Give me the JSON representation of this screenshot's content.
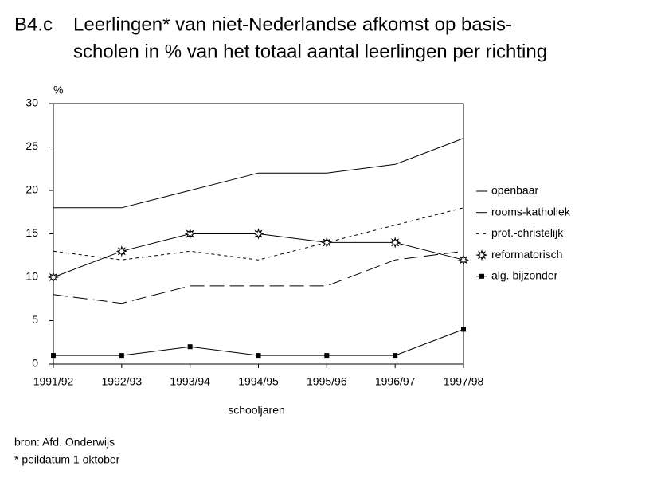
{
  "chart_data": {
    "type": "line",
    "figure_label": "B4.c",
    "title": [
      "Leerlingen* van niet-Nederlandse afkomst op basis-",
      "scholen in % van het totaal aantal leerlingen per richting"
    ],
    "y_label": "%",
    "x_label": "schooljaren",
    "categories": [
      "1991/92",
      "1992/93",
      "1993/94",
      "1994/95",
      "1995/96",
      "1996/97",
      "1997/98"
    ],
    "series": [
      {
        "name": "openbaar",
        "color": "#000000",
        "dash": "solid",
        "marker": "none",
        "values": [
          18,
          18,
          20,
          22,
          22,
          23,
          26
        ]
      },
      {
        "name": "rooms-katholiek",
        "color": "#000000",
        "dash": "long",
        "marker": "none",
        "values": [
          8,
          7,
          9,
          9,
          9,
          12,
          13
        ]
      },
      {
        "name": "prot.-christelijk",
        "color": "#000000",
        "dash": "short",
        "marker": "none",
        "values": [
          13,
          12,
          13,
          12,
          14,
          16,
          18
        ]
      },
      {
        "name": "reformatorisch",
        "color": "#000000",
        "dash": "solid",
        "marker": "star",
        "values": [
          10,
          13,
          15,
          15,
          14,
          14,
          12
        ]
      },
      {
        "name": "alg. bijzonder",
        "color": "#000000",
        "dash": "solid",
        "marker": "square",
        "values": [
          1,
          1,
          2,
          1,
          1,
          1,
          4
        ]
      }
    ],
    "ylim": [
      0,
      30
    ],
    "yticks": [
      0,
      5,
      10,
      15,
      20,
      25,
      30
    ],
    "legend": "right",
    "notes": [
      "bron: Afd. Onderwijs",
      "* peildatum 1 oktober"
    ]
  }
}
